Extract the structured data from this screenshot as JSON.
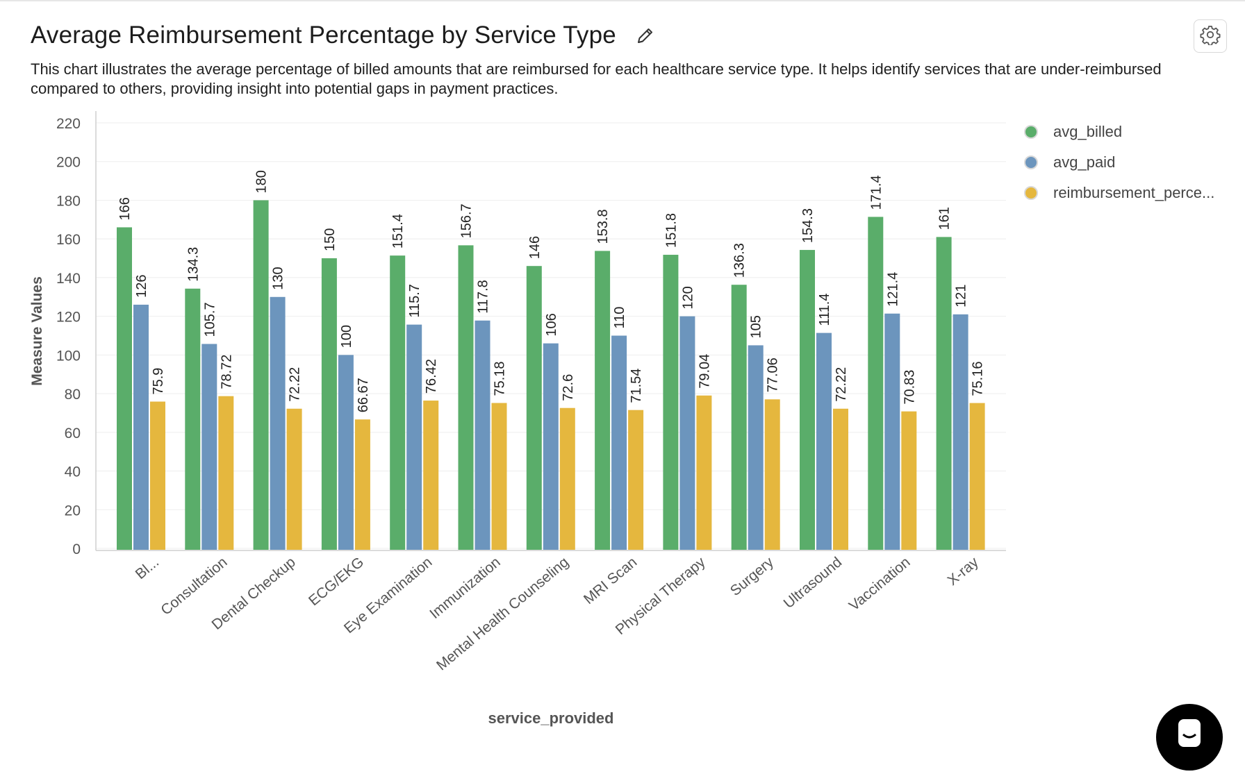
{
  "header": {
    "title": "Average Reimbursement Percentage by Service Type",
    "description": "This chart illustrates the average percentage of billed amounts that are reimbursed for each healthcare service type. It helps identify services that are under-reimbursed compared to others, providing insight into potential gaps in payment practices."
  },
  "icons": {
    "edit": "pencil-icon",
    "settings": "gear-icon",
    "chat": "chat-icon"
  },
  "colors": {
    "avg_billed": "#5aad6a",
    "avg_paid": "#6c95bd",
    "reimbursement": "#e5b73e"
  },
  "chart_data": {
    "type": "bar",
    "title": "Average Reimbursement Percentage by Service Type",
    "xlabel": "service_provided",
    "ylabel": "Measure Values",
    "ylim": [
      0,
      220
    ],
    "yticks": [
      0,
      20,
      40,
      60,
      80,
      100,
      120,
      140,
      160,
      180,
      200,
      220
    ],
    "grid": true,
    "legend_position": "right",
    "categories": [
      "Bl...",
      "Consultation",
      "Dental Checkup",
      "ECG/EKG",
      "Eye Examination",
      "Immunization",
      "Mental Health Counseling",
      "MRI Scan",
      "Physical Therapy",
      "Surgery",
      "Ultrasound",
      "Vaccination",
      "X-ray"
    ],
    "series": [
      {
        "name": "avg_billed",
        "color": "#5aad6a",
        "values": [
          166,
          134.3,
          180,
          150,
          151.4,
          156.7,
          146,
          153.8,
          151.8,
          136.3,
          154.3,
          171.4,
          161
        ]
      },
      {
        "name": "avg_paid",
        "color": "#6c95bd",
        "values": [
          126,
          105.7,
          130,
          100,
          115.7,
          117.8,
          106,
          110,
          120,
          105,
          111.4,
          121.4,
          121
        ]
      },
      {
        "name": "reimbursement_perce...",
        "color": "#e5b73e",
        "values": [
          75.9,
          78.72,
          72.22,
          66.67,
          76.42,
          75.18,
          72.6,
          71.54,
          79.04,
          77.06,
          72.22,
          70.83,
          75.16
        ]
      }
    ]
  }
}
